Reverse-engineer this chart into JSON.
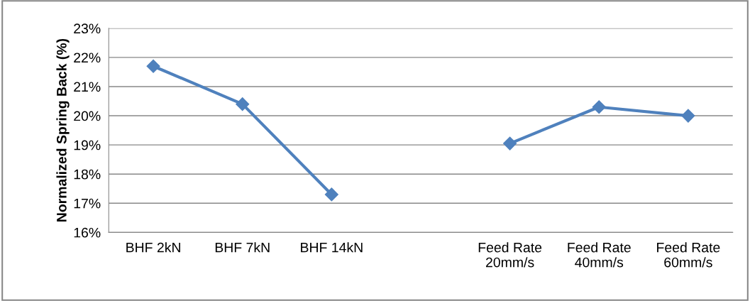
{
  "chart_data": {
    "type": "line",
    "ylabel": "Normalized Spring Back (%)",
    "categories": [
      "BHF 2kN",
      "BHF 7kN",
      "BHF 14kN",
      null,
      "Feed Rate\n20mm/s",
      "Feed Rate\n40mm/s",
      "Feed Rate\n60mm/s"
    ],
    "series": [
      {
        "color": "#4f81bd",
        "values": [
          21.7,
          20.4,
          17.3,
          null,
          19.05,
          20.3,
          20.0
        ]
      }
    ],
    "ylim": [
      16,
      23
    ],
    "yticks": [
      {
        "value": 16,
        "label": "16%"
      },
      {
        "value": 17,
        "label": "17%"
      },
      {
        "value": 18,
        "label": "18%"
      },
      {
        "value": 19,
        "label": "19%"
      },
      {
        "value": 20,
        "label": "20%"
      },
      {
        "value": 21,
        "label": "21%"
      },
      {
        "value": 22,
        "label": "22%"
      },
      {
        "value": 23,
        "label": "23%"
      }
    ],
    "grid": "y",
    "marker": "diamond",
    "line_style": "solid",
    "legend": false
  }
}
